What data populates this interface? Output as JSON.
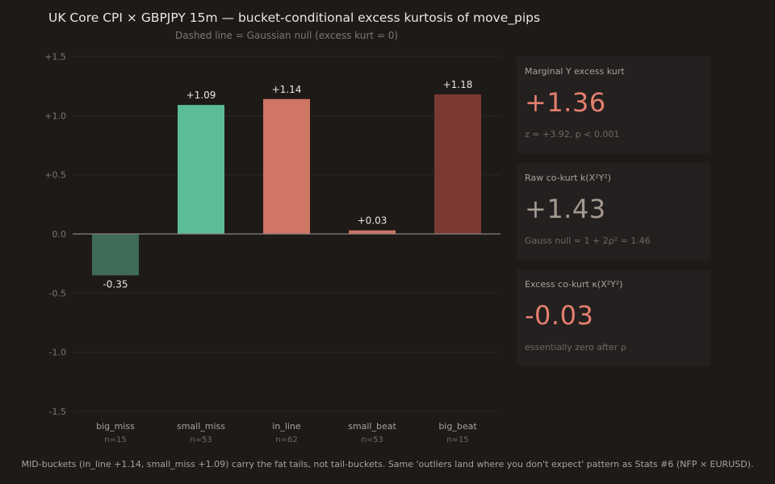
{
  "chart_data": {
    "type": "bar",
    "title": "UK Core CPI × GBPJPY 15m — bucket-conditional excess kurtosis of move_pips",
    "subtitle": "Dashed line = Gaussian null (excess kurt = 0)",
    "categories": [
      "big_miss",
      "small_miss",
      "in_line",
      "small_beat",
      "big_beat"
    ],
    "counts": [
      "n=15",
      "n=53",
      "n=62",
      "n=53",
      "n=15"
    ],
    "values": [
      -0.35,
      1.09,
      1.14,
      0.03,
      1.18
    ],
    "value_labels": [
      "-0.35",
      "+1.09",
      "+1.14",
      "+0.03",
      "+1.18"
    ],
    "colors": [
      "#3f6b59",
      "#5bbc96",
      "#cf7665",
      "#cf7665",
      "#7a3a33"
    ],
    "ylim": [
      -1.5,
      1.5
    ],
    "yticks": [
      1.5,
      1.0,
      0.5,
      0.0,
      -0.5,
      -1.0,
      -1.5
    ],
    "ytick_labels": [
      "+1.5",
      "+1.0",
      "+0.5",
      "0.0",
      "-0.5",
      "-1.0",
      "-1.5"
    ],
    "grid": true
  },
  "cards": [
    {
      "label": "Marginal Y excess kurt",
      "value": "+1.36",
      "note": "z = +3.92, p < 0.001",
      "color": "#e57f6e"
    },
    {
      "label": "Raw co-kurt k(X²Y²)",
      "value": "+1.43",
      "note": "Gauss null = 1 + 2ρ² = 1.46",
      "color": "#a49a91"
    },
    {
      "label": "Excess co-kurt κ(X²Y²)",
      "value": "-0.03",
      "note": "essentially zero after ρ",
      "color": "#e57f6e"
    }
  ],
  "footer": "MID-buckets (in_line +1.14, small_miss +1.09) carry the fat tails, not tail-buckets. Same 'outliers land where you don't expect' pattern as Stats #6 (NFP × EURUSD)."
}
